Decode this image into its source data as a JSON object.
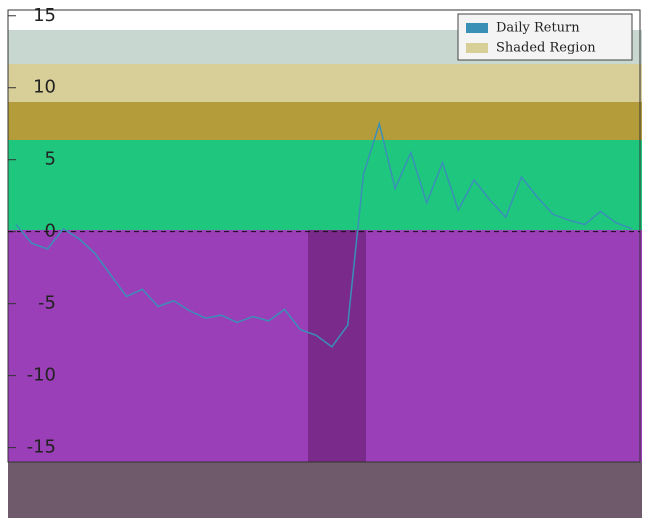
{
  "chart_data": {
    "type": "line",
    "series": [
      {
        "name": "Daily Return",
        "color": "#3a8fb7",
        "values": [
          0.5,
          -0.8,
          -1.2,
          0.2,
          -0.5,
          -1.5,
          -3.0,
          -4.5,
          -4.0,
          -5.2,
          -4.8,
          -5.5,
          -6.0,
          -5.8,
          -6.3,
          -5.9,
          -6.2,
          -5.4,
          -6.8,
          -7.2,
          -8.0,
          -6.5,
          4.0,
          7.5,
          3.0,
          5.5,
          2.0,
          4.8,
          1.5,
          3.6,
          2.2,
          1.0,
          3.8,
          2.4,
          1.2,
          0.8,
          0.5,
          1.4,
          0.6,
          0.2
        ]
      },
      {
        "name": "Shaded Region",
        "color": "#d8cf98"
      }
    ],
    "ylim": [
      -16,
      15.4
    ],
    "yticks": [
      15,
      10,
      5,
      0,
      -5,
      -10,
      -15
    ],
    "zero_line": true
  }
}
